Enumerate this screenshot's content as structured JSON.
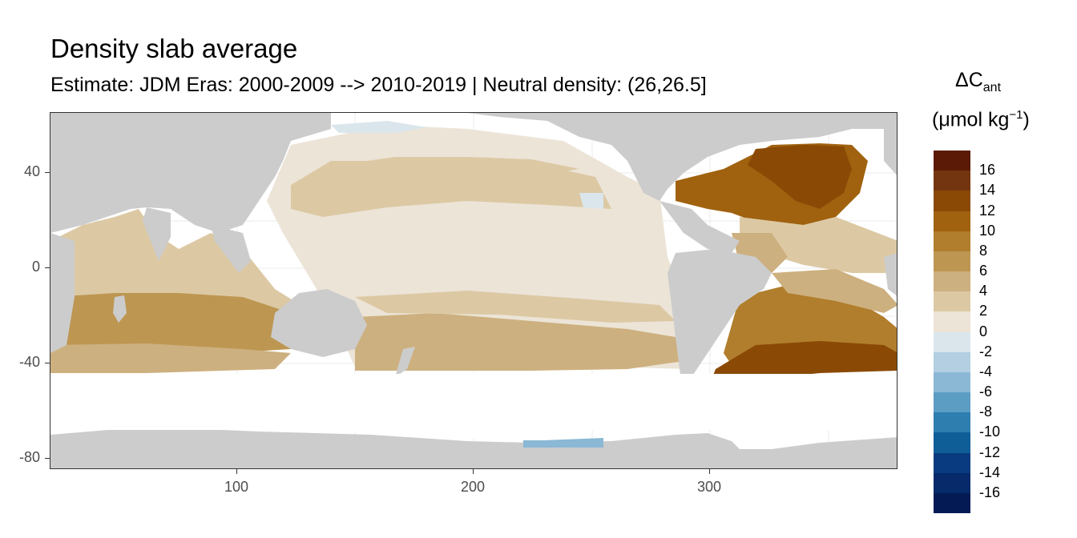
{
  "title": "Density slab average",
  "subtitle": "Estimate: JDM Eras: 2000-2009 --> 2010-2019 | Neutral density: (26,26.5]",
  "legend": {
    "title_main": "ΔC",
    "title_sub": "ant",
    "unit_open": "(μmol kg",
    "unit_sup": "−1",
    "unit_close": ")",
    "labels": [
      "16",
      "14",
      "12",
      "10",
      "8",
      "6",
      "4",
      "2",
      "0",
      "-2",
      "-4",
      "-6",
      "-8",
      "-10",
      "-12",
      "-14",
      "-16"
    ],
    "colors": [
      "#5a1a05",
      "#733510",
      "#8a4a06",
      "#a0620f",
      "#b07e2c",
      "#bd9652",
      "#cdb07f",
      "#dcc9a4",
      "#ece4d7",
      "#dae6ec",
      "#b3cfe1",
      "#8ab8d5",
      "#5c9dc4",
      "#2e7eb0",
      "#0f5e98",
      "#083b7f",
      "#062a6a",
      "#041a55"
    ]
  },
  "axes": {
    "x_ticks": [
      "100",
      "200",
      "300"
    ],
    "y_ticks": [
      "40",
      "0",
      "-40",
      "-80"
    ]
  },
  "map_colors": {
    "land": "#cccccc",
    "no_data": "#ffffff",
    "grid": "#ebebeb"
  }
}
